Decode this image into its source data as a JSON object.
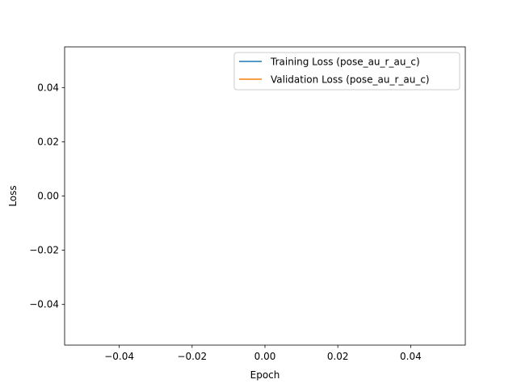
{
  "chart_data": {
    "type": "line",
    "xlabel": "Epoch",
    "ylabel": "Loss",
    "xlim": [
      -0.055,
      0.055
    ],
    "ylim": [
      -0.055,
      0.055
    ],
    "xticks": [
      -0.04,
      -0.02,
      0.0,
      0.02,
      0.04
    ],
    "xtick_labels": [
      "−0.04",
      "−0.02",
      "0.00",
      "0.02",
      "0.04"
    ],
    "yticks": [
      -0.04,
      -0.02,
      0.0,
      0.02,
      0.04
    ],
    "ytick_labels": [
      "−0.04",
      "−0.02",
      "0.00",
      "0.02",
      "0.04"
    ],
    "grid": false,
    "legend_position": "top-right",
    "series": [
      {
        "name": "Training Loss (pose_au_r_au_c)",
        "color": "#1f77b4",
        "x": [],
        "y": []
      },
      {
        "name": "Validation Loss (pose_au_r_au_c)",
        "color": "#ff7f0e",
        "x": [],
        "y": []
      }
    ]
  }
}
